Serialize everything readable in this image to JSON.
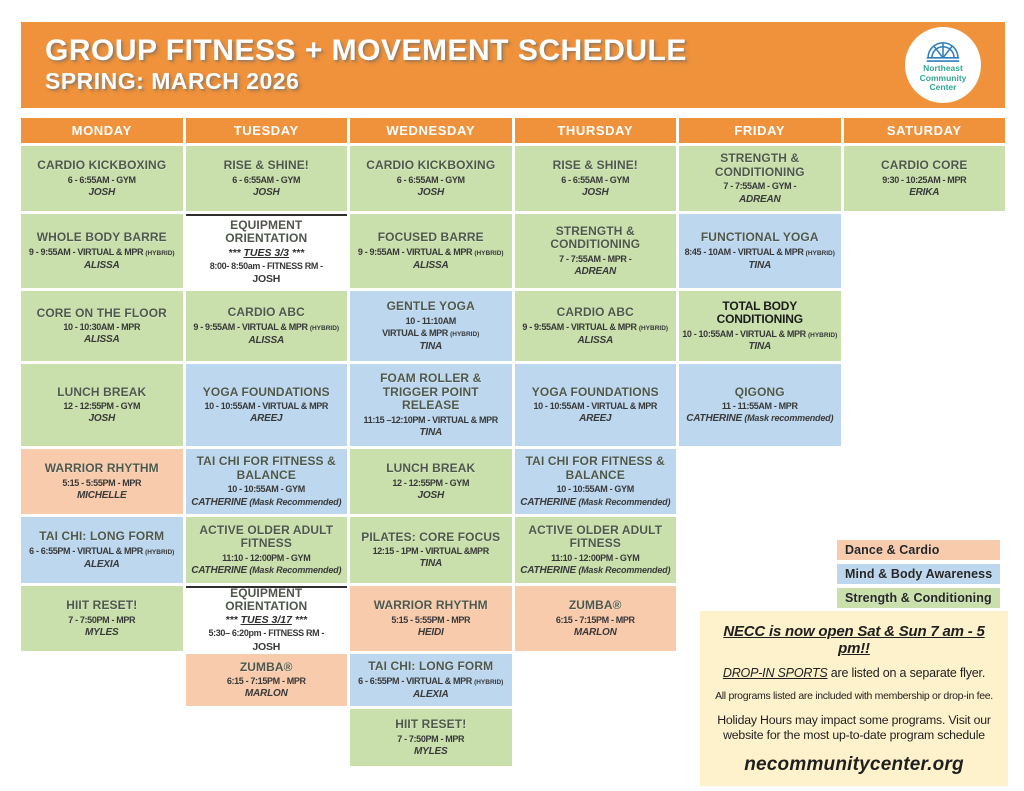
{
  "header": {
    "title": "GROUP FITNESS + MOVEMENT SCHEDULE",
    "subtitle": "SPRING: MARCH 2026",
    "logo_lines": [
      "Northeast",
      "Community",
      "Center"
    ]
  },
  "days": [
    "MONDAY",
    "TUESDAY",
    "WEDNESDAY",
    "THURSDAY",
    "FRIDAY",
    "SATURDAY"
  ],
  "colors": {
    "banner": "#f0923b",
    "green": "#c9e0ad",
    "blue": "#bdd7ee",
    "orange": "#f8cbad",
    "white": "#ffffff",
    "notice_bg": "#fdf2cb",
    "logo_text": "#33a693",
    "logo_icon": "#2f7fbf"
  },
  "legend": [
    {
      "key": "orange",
      "label": "Dance & Cardio"
    },
    {
      "key": "blue",
      "label": "Mind & Body Awareness"
    },
    {
      "key": "green",
      "label": "Strength & Conditioning"
    }
  ],
  "notice": {
    "hours": "NECC is now open Sat &  Sun 7 am - 5 pm!!",
    "dropin_label": "DROP-IN SPORTS",
    "dropin_rest": " are listed on a separate flyer.",
    "programs": "All programs listed are included with membership or drop-in fee.",
    "holiday": "Holiday Hours may impact some programs. Visit our website for the most up-to-date program schedule",
    "website": "necommunitycenter.org"
  },
  "schedule": [
    {
      "day": 0,
      "row": 1,
      "color": "green",
      "title": "CARDIO KICKBOXING",
      "details": [
        "6 - 6:55AM - GYM"
      ],
      "instructor": "JOSH"
    },
    {
      "day": 0,
      "row": 2,
      "color": "green",
      "title": "WHOLE BODY BARRE",
      "details": [
        "9 - 9:55AM - VIRTUAL & MPR (HYBRID)"
      ],
      "instructor": "ALISSA"
    },
    {
      "day": 0,
      "row": 3,
      "color": "green",
      "title": "CORE ON THE FLOOR",
      "details": [
        "10 - 10:30AM - MPR"
      ],
      "instructor": "ALISSA"
    },
    {
      "day": 0,
      "row": 4,
      "color": "green",
      "title": "LUNCH BREAK",
      "details": [
        "12 - 12:55PM - GYM"
      ],
      "instructor": "JOSH"
    },
    {
      "day": 0,
      "row": 5,
      "color": "orange",
      "title": "WARRIOR RHYTHM",
      "details": [
        "5:15 - 5:55PM - MPR"
      ],
      "instructor": "MICHELLE"
    },
    {
      "day": 0,
      "row": 6,
      "color": "blue",
      "title": "TAI CHI: LONG FORM",
      "details": [
        "6 - 6:55PM - VIRTUAL & MPR (HYBRID)"
      ],
      "instructor": "ALEXIA"
    },
    {
      "day": 0,
      "row": 7,
      "color": "green",
      "title": "HIIT RESET!",
      "details": [
        "7 - 7:50PM - MPR"
      ],
      "instructor": "MYLES"
    },
    {
      "day": 1,
      "row": 1,
      "color": "green",
      "title": "RISE & SHINE!",
      "details": [
        "6 - 6:55AM - GYM"
      ],
      "instructor": "JOSH"
    },
    {
      "day": 1,
      "row": 2,
      "color": "white",
      "title": "EQUIPMENT ORIENTATION",
      "sub": {
        "pre": "*** ",
        "u": "TUES 3/3",
        "post": " ***"
      },
      "details": [
        "8:00- 8:50am - FITNESS  RM -"
      ],
      "instructor": "JOSH"
    },
    {
      "day": 1,
      "row": 3,
      "color": "green",
      "title": "CARDIO ABC",
      "details": [
        "9 - 9:55AM - VIRTUAL & MPR (HYBRID)"
      ],
      "instructor": "ALISSA"
    },
    {
      "day": 1,
      "row": 4,
      "color": "blue",
      "title": "YOGA FOUNDATIONS",
      "details": [
        "10 - 10:55AM - VIRTUAL & MPR"
      ],
      "instructor": "AREEJ"
    },
    {
      "day": 1,
      "row": 5,
      "color": "blue",
      "title": "TAI CHI FOR FITNESS & BALANCE",
      "details": [
        "10 - 10:55AM - GYM"
      ],
      "instructor": "CATHERINE",
      "mask": "(Mask Recommended)"
    },
    {
      "day": 1,
      "row": 6,
      "color": "green",
      "title": "ACTIVE OLDER ADULT FITNESS",
      "details": [
        "11:10 - 12:00PM - GYM"
      ],
      "instructor": "CATHERINE",
      "mask": "(Mask Recommended)"
    },
    {
      "day": 1,
      "row": 7,
      "color": "white",
      "title": "EQUIPMENT ORIENTATION",
      "sub": {
        "pre": "*** ",
        "u": "TUES 3/17",
        "post": " ***"
      },
      "details": [
        "5:30– 6:20pm - FITNESS  RM -"
      ],
      "instructor": "JOSH"
    },
    {
      "day": 1,
      "row": 8,
      "color": "orange",
      "title": "ZUMBA®",
      "details": [
        "6:15 - 7:15PM - MPR"
      ],
      "instructor": "MARLON"
    },
    {
      "day": 2,
      "row": 1,
      "color": "green",
      "title": "CARDIO KICKBOXING",
      "details": [
        "6 - 6:55AM - GYM"
      ],
      "instructor": "JOSH"
    },
    {
      "day": 2,
      "row": 2,
      "color": "green",
      "title": "FOCUSED BARRE",
      "details": [
        "9 - 9:55AM - VIRTUAL & MPR (HYBRID)"
      ],
      "instructor": "ALISSA"
    },
    {
      "day": 2,
      "row": 3,
      "color": "blue",
      "title": "GENTLE YOGA",
      "details": [
        "10 - 11:10AM",
        "VIRTUAL & MPR (HYBRID)"
      ],
      "instructor": "TINA"
    },
    {
      "day": 2,
      "row": 4,
      "color": "blue",
      "title": "FOAM ROLLER & TRIGGER POINT RELEASE",
      "details": [
        "11:15 –12:10PM  - VIRTUAL & MPR"
      ],
      "instructor": "TINA"
    },
    {
      "day": 2,
      "row": 5,
      "color": "green",
      "title": "LUNCH BREAK",
      "details": [
        "12 - 12:55PM - GYM"
      ],
      "instructor": "JOSH"
    },
    {
      "day": 2,
      "row": 6,
      "color": "green",
      "title": "PILATES: CORE FOCUS",
      "details": [
        "12:15 - 1PM - VIRTUAL &MPR"
      ],
      "instructor": "TINA"
    },
    {
      "day": 2,
      "row": 7,
      "color": "orange",
      "title": "WARRIOR RHYTHM",
      "details": [
        "5:15 - 5:55PM - MPR"
      ],
      "instructor": "HEIDI"
    },
    {
      "day": 2,
      "row": 8,
      "color": "blue",
      "title": "TAI CHI: LONG FORM",
      "details": [
        "6 - 6:55PM - VIRTUAL & MPR (HYBRID)"
      ],
      "instructor": "ALEXIA"
    },
    {
      "day": 2,
      "row": 9,
      "color": "green",
      "title": "HIIT RESET!",
      "details": [
        "7 - 7:50PM - MPR"
      ],
      "instructor": "MYLES"
    },
    {
      "day": 3,
      "row": 1,
      "color": "green",
      "title": "RISE & SHINE!",
      "details": [
        "6 - 6:55AM - GYM"
      ],
      "instructor": "JOSH"
    },
    {
      "day": 3,
      "row": 2,
      "color": "green",
      "title": "STRENGTH & CONDITIONING",
      "details": [
        "7 - 7:55AM - MPR -"
      ],
      "instructor": "ADREAN"
    },
    {
      "day": 3,
      "row": 3,
      "color": "green",
      "title": "CARDIO ABC",
      "details": [
        "9 - 9:55AM - VIRTUAL & MPR (HYBRID)"
      ],
      "instructor": "ALISSA"
    },
    {
      "day": 3,
      "row": 4,
      "color": "blue",
      "title": "YOGA FOUNDATIONS",
      "details": [
        "10 - 10:55AM - VIRTUAL &  MPR"
      ],
      "instructor": "AREEJ"
    },
    {
      "day": 3,
      "row": 5,
      "color": "blue",
      "title": "TAI CHI FOR FITNESS & BALANCE",
      "details": [
        "10 - 10:55AM - GYM"
      ],
      "instructor": "CATHERINE",
      "mask": "(Mask Recommended)"
    },
    {
      "day": 3,
      "row": 6,
      "color": "green",
      "title": "ACTIVE OLDER ADULT FITNESS",
      "details": [
        "11:10 - 12:00PM - GYM"
      ],
      "instructor": "CATHERINE",
      "mask": "(Mask Recommended)"
    },
    {
      "day": 3,
      "row": 7,
      "color": "orange",
      "title": "ZUMBA®",
      "details": [
        "6:15 - 7:15PM - MPR"
      ],
      "instructor": "MARLON"
    },
    {
      "day": 4,
      "row": 1,
      "color": "green",
      "title": "STRENGTH & CONDITIONING",
      "details": [
        "7 - 7:55AM - GYM -"
      ],
      "instructor": "ADREAN"
    },
    {
      "day": 4,
      "row": 2,
      "color": "blue",
      "title": "FUNCTIONAL YOGA",
      "details": [
        "8:45 - 10AM - VIRTUAL & MPR (HYBRID)"
      ],
      "instructor": "TINA"
    },
    {
      "day": 4,
      "row": 3,
      "color": "green",
      "title": "TOTAL BODY CONDITIONING",
      "dark": true,
      "details": [
        "10 - 10:55AM - VIRTUAL & MPR (HYBRID)"
      ],
      "instructor": "TINA"
    },
    {
      "day": 4,
      "row": 4,
      "color": "blue",
      "title": "QIGONG",
      "details": [
        "11 - 11:55AM - MPR"
      ],
      "instructor": "CATHERINE",
      "mask": "(Mask recommended)"
    },
    {
      "day": 5,
      "row": 1,
      "color": "green",
      "title": "CARDIO CORE",
      "details": [
        "9:30 - 10:25AM - MPR"
      ],
      "instructor": "ERIKA"
    }
  ]
}
